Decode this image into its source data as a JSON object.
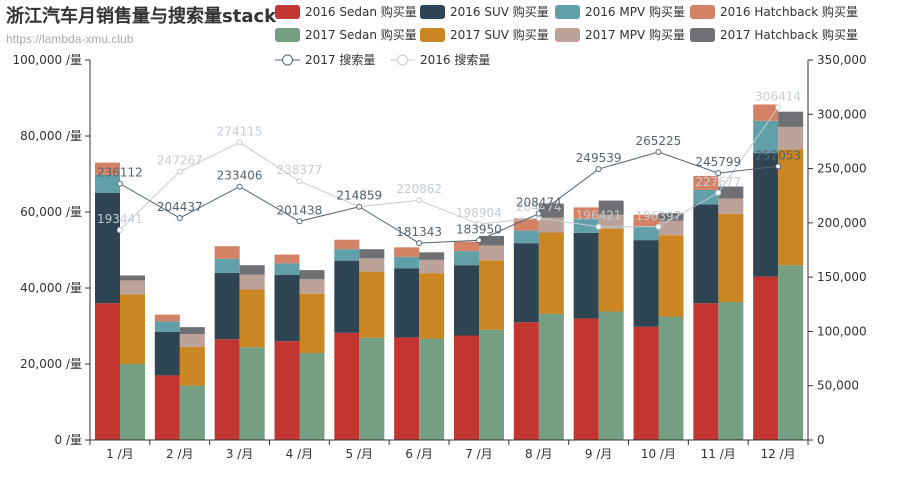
{
  "chart_data": {
    "type": "bar",
    "title": "浙江汽车月销售量与搜索量stack",
    "subtitle": "https://lambda-xmu.club",
    "categories": [
      "1 /月",
      "2 /月",
      "3 /月",
      "4 /月",
      "5 /月",
      "6 /月",
      "7 /月",
      "8 /月",
      "9 /月",
      "10 /月",
      "11 /月",
      "12 /月"
    ],
    "y_left": {
      "min": 0,
      "max": 100000,
      "ticks": [
        "0 /量",
        "20,000 /量",
        "40,000 /量",
        "60,000 /量",
        "80,000 /量",
        "100,000 /量"
      ]
    },
    "y_right": {
      "min": 0,
      "max": 350000,
      "ticks": [
        "0",
        "50,000",
        "100,000",
        "150,000",
        "200,000",
        "250,000",
        "300,000",
        "350,000"
      ]
    },
    "stack_2016": [
      {
        "name": "2016 Sedan 购买量",
        "color": "#c23531",
        "values": [
          36000,
          17000,
          26500,
          26000,
          28200,
          27000,
          27500,
          31000,
          32000,
          29800,
          36000,
          43000
        ]
      },
      {
        "name": "2016 SUV 购买量",
        "color": "#2f4554",
        "values": [
          29000,
          11500,
          17500,
          17500,
          19000,
          18200,
          18500,
          20800,
          22500,
          22800,
          26000,
          32500
        ]
      },
      {
        "name": "2016 MPV 购买量",
        "color": "#61a0a8",
        "values": [
          4800,
          2700,
          3700,
          3000,
          3000,
          3000,
          3700,
          3300,
          3700,
          3700,
          3800,
          8500
        ]
      },
      {
        "name": "2016 Hatchback 购买量",
        "color": "#d48265",
        "values": [
          3200,
          1800,
          3300,
          2300,
          2500,
          2500,
          2500,
          3200,
          3000,
          3000,
          3700,
          4300
        ]
      }
    ],
    "stack_2017": [
      {
        "name": "2017 Sedan 购买量",
        "color": "#749f83",
        "values": [
          20000,
          14300,
          24400,
          22900,
          26900,
          26700,
          29000,
          33200,
          33800,
          32500,
          36300,
          46000
        ]
      },
      {
        "name": "2017 SUV 购买量",
        "color": "#ca8622",
        "values": [
          18300,
          10200,
          15200,
          15600,
          17400,
          17200,
          18300,
          21400,
          21800,
          21400,
          23200,
          30500
        ]
      },
      {
        "name": "2017 MPV 购买量",
        "color": "#bda29a",
        "values": [
          3700,
          3400,
          3900,
          3800,
          3500,
          3500,
          3900,
          3900,
          3700,
          3800,
          4000,
          5900
        ]
      },
      {
        "name": "2017 Hatchback 购买量",
        "color": "#6e7074",
        "values": [
          1300,
          1800,
          2500,
          2400,
          2400,
          2000,
          2500,
          3700,
          3700,
          2000,
          3200,
          4000
        ]
      }
    ],
    "lines": [
      {
        "name": "2017 搜索量",
        "color": "#546570",
        "values": [
          236112,
          204437,
          233406,
          201438,
          214859,
          181343,
          183950,
          208474,
          249539,
          265225,
          245799,
          252053
        ]
      },
      {
        "name": "2016 搜索量",
        "color": "#c4ccd3",
        "values": [
          193441,
          247267,
          274115,
          238377,
          214859,
          220862,
          198904,
          204474,
          196421,
          196397,
          227677,
          306414
        ]
      }
    ],
    "legend_position": "top-right"
  }
}
